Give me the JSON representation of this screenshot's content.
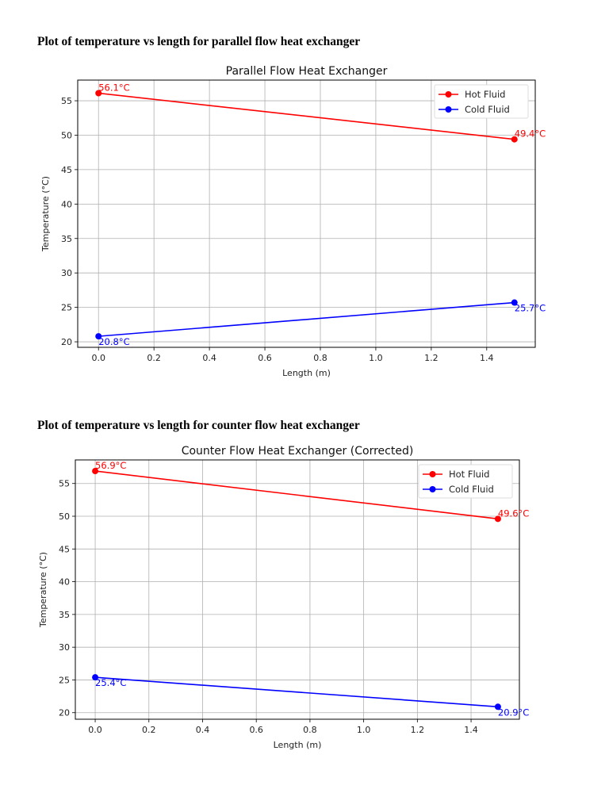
{
  "sections": [
    {
      "heading": "Plot of temperature vs length for parallel flow heat exchanger"
    },
    {
      "heading": "Plot of temperature vs length for counter flow heat exchanger"
    }
  ],
  "chart_data": [
    {
      "type": "line",
      "title": "Parallel Flow Heat Exchanger",
      "xlabel": "Length (m)",
      "ylabel": "Temperature (°C)",
      "xlim": [
        -0.075,
        1.575
      ],
      "ylim": [
        19.2,
        58.0
      ],
      "xticks": [
        "0.0",
        "0.2",
        "0.4",
        "0.6",
        "0.8",
        "1.0",
        "1.2",
        "1.4"
      ],
      "xtick_values": [
        0,
        0.2,
        0.4,
        0.6,
        0.8,
        1.0,
        1.2,
        1.4
      ],
      "yticks": [
        "20",
        "25",
        "30",
        "35",
        "40",
        "45",
        "50",
        "55"
      ],
      "ytick_values": [
        20,
        25,
        30,
        35,
        40,
        45,
        50,
        55
      ],
      "grid": true,
      "legend": "top-right",
      "x": [
        0,
        1.5
      ],
      "series": [
        {
          "name": "Hot Fluid",
          "color": "#ff0000",
          "values": [
            56.1,
            49.4
          ],
          "labels": [
            "56.1°C",
            "49.4°C"
          ],
          "label_side": "above"
        },
        {
          "name": "Cold Fluid",
          "color": "#0000ff",
          "values": [
            20.8,
            25.7
          ],
          "labels": [
            "20.8°C",
            "25.7°C"
          ],
          "label_side": "below"
        }
      ]
    },
    {
      "type": "line",
      "title": "Counter Flow Heat Exchanger (Corrected)",
      "xlabel": "Length (m)",
      "ylabel": "Temperature (°C)",
      "xlim": [
        -0.074,
        1.58
      ],
      "ylim": [
        19.0,
        58.6
      ],
      "xticks": [
        "0.0",
        "0.2",
        "0.4",
        "0.6",
        "0.8",
        "1.0",
        "1.2",
        "1.4"
      ],
      "xtick_values": [
        0,
        0.2,
        0.4,
        0.6,
        0.8,
        1.0,
        1.2,
        1.4
      ],
      "yticks": [
        "20",
        "25",
        "30",
        "35",
        "40",
        "45",
        "50",
        "55"
      ],
      "ytick_values": [
        20,
        25,
        30,
        35,
        40,
        45,
        50,
        55
      ],
      "grid": true,
      "legend": "top-right",
      "x": [
        0,
        1.5
      ],
      "series": [
        {
          "name": "Hot Fluid",
          "color": "#ff0000",
          "values": [
            56.9,
            49.6
          ],
          "labels": [
            "56.9°C",
            "49.6°C"
          ],
          "label_side": "above"
        },
        {
          "name": "Cold Fluid",
          "color": "#0000ff",
          "values": [
            25.4,
            20.9
          ],
          "labels": [
            "25.4°C",
            "20.9°C"
          ],
          "label_side": "below"
        }
      ]
    }
  ]
}
